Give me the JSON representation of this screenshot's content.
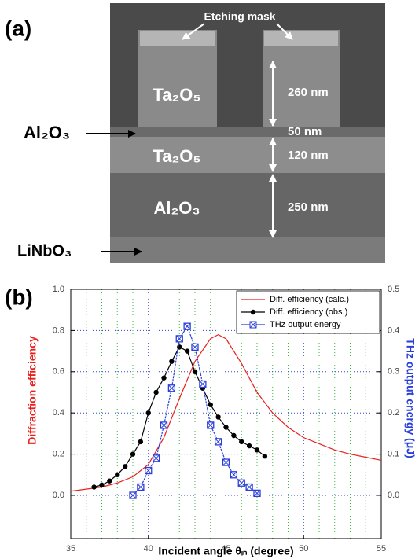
{
  "panel_a": {
    "label": "(a)",
    "etching_mask": "Etching mask",
    "ta2o5_top": "Ta₂O₅",
    "dim_260": "260 nm",
    "al2o3_thin": "Al₂O₃",
    "dim_50": "50 nm",
    "ta2o5_mid": "Ta₂O₅",
    "dim_120": "120 nm",
    "al2o3_thick": "Al₂O₃",
    "dim_250": "250 nm",
    "linbo3": "LiNbO₃"
  },
  "chart_data": {
    "type": "line",
    "panel_label": "(b)",
    "x_label": "Incident angle θᵢₙ (degree)",
    "y_label": "Diffraction efficiency",
    "y2_label": "THz output energy (μJ)",
    "xlim": [
      35,
      55
    ],
    "xticks": [
      35,
      40,
      45,
      50,
      55
    ],
    "xminorticks": [
      36,
      37,
      38,
      39,
      41,
      42,
      43,
      44,
      46,
      47,
      48,
      49,
      51,
      52,
      53,
      54
    ],
    "ylim": [
      -0.21,
      1.0
    ],
    "yticks": [
      {
        "value": 0,
        "label": "0.0"
      },
      0.2,
      0.4,
      0.6,
      0.8,
      {
        "value": 1,
        "label": "1.0"
      }
    ],
    "y2lim": [
      -0.105,
      0.5
    ],
    "y2ticks": [
      {
        "value": 0,
        "label": "0.0"
      },
      0.1,
      0.2,
      0.3,
      0.4,
      0.5
    ],
    "grid": true,
    "legend": "upper right",
    "series": [
      {
        "name": "Diff. efficiency (calc.)",
        "color": "#e8201c",
        "marker": "none",
        "x": [
          35,
          36,
          37,
          38,
          39,
          40,
          41,
          42,
          43,
          44,
          44.5,
          45,
          46,
          47,
          48,
          49,
          50,
          51,
          52,
          53,
          54,
          55
        ],
        "values": [
          0.02,
          0.03,
          0.04,
          0.06,
          0.09,
          0.15,
          0.28,
          0.47,
          0.65,
          0.76,
          0.78,
          0.76,
          0.64,
          0.5,
          0.4,
          0.33,
          0.28,
          0.25,
          0.22,
          0.2,
          0.185,
          0.17
        ]
      },
      {
        "name": "Diff. efficiency (obs.)",
        "color": "#000000",
        "marker": "circle",
        "x": [
          36.5,
          37,
          37.5,
          38,
          38.5,
          39,
          39.5,
          40,
          40.5,
          41,
          41.5,
          42,
          42.5,
          43,
          43.5,
          44,
          44.5,
          45,
          45.5,
          46,
          46.5,
          47,
          47.5
        ],
        "values": [
          0.04,
          0.05,
          0.07,
          0.1,
          0.14,
          0.2,
          0.26,
          0.4,
          0.5,
          0.57,
          0.65,
          0.72,
          0.7,
          0.6,
          0.52,
          0.44,
          0.38,
          0.33,
          0.29,
          0.26,
          0.24,
          0.22,
          0.19
        ]
      },
      {
        "name": "THz output energy",
        "color": "#2a3fd8",
        "marker": "xsquare",
        "axis": "y2",
        "x": [
          39,
          39.5,
          40,
          40.5,
          41,
          41.5,
          42,
          42.5,
          43,
          43.5,
          44,
          44.5,
          45,
          45.5,
          46,
          46.5,
          47
        ],
        "values": [
          0.0,
          0.02,
          0.06,
          0.09,
          0.17,
          0.26,
          0.38,
          0.41,
          0.36,
          0.27,
          0.17,
          0.13,
          0.08,
          0.05,
          0.03,
          0.02,
          0.005
        ]
      }
    ]
  }
}
